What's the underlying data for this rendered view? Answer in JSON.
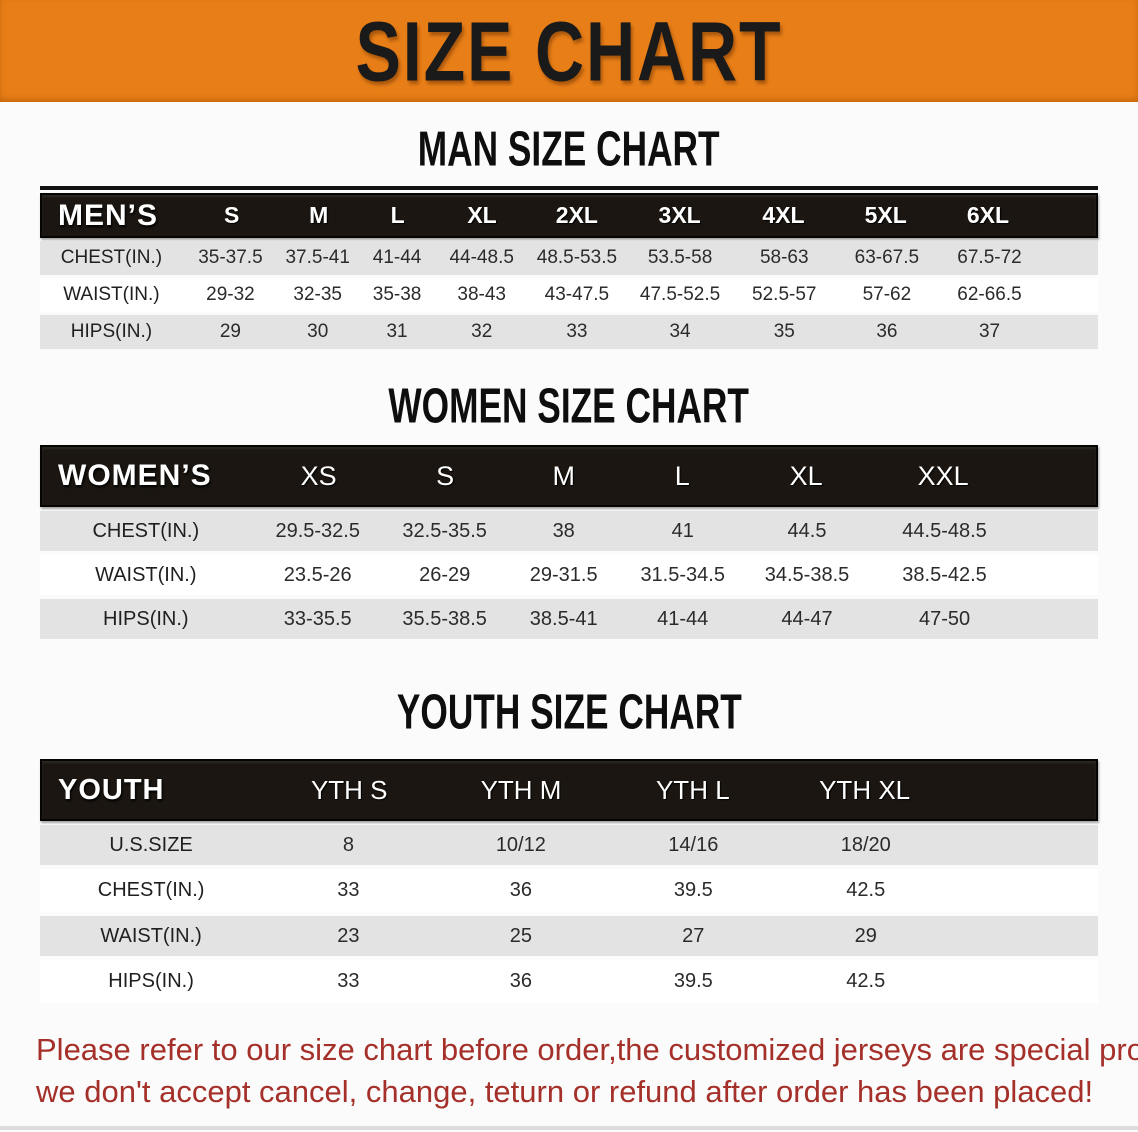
{
  "banner": {
    "title": "SIZE CHART",
    "bg_color": "#E87E17",
    "text_color": "#1A1A1A"
  },
  "sections": {
    "men": {
      "heading": "MAN SIZE CHART",
      "table": {
        "corner_label": "MEN’S",
        "columns": [
          "S",
          "M",
          "L",
          "XL",
          "2XL",
          "3XL",
          "4XL",
          "5XL",
          "6XL"
        ],
        "rows": [
          {
            "label": "CHEST(IN.)",
            "values": [
              "35-37.5",
              "37.5-41",
              "41-44",
              "44-48.5",
              "48.5-53.5",
              "53.5-58",
              "58-63",
              "63-67.5",
              "67.5-72"
            ]
          },
          {
            "label": "WAIST(IN.)",
            "values": [
              "29-32",
              "32-35",
              "35-38",
              "38-43",
              "43-47.5",
              "47.5-52.5",
              "52.5-57",
              "57-62",
              "62-66.5"
            ]
          },
          {
            "label": "HIPS(IN.)",
            "values": [
              "29",
              "30",
              "31",
              "32",
              "33",
              "34",
              "35",
              "36",
              "37"
            ]
          }
        ]
      }
    },
    "women": {
      "heading": "WOMEN SIZE CHART",
      "table": {
        "corner_label": "WOMEN’S",
        "columns": [
          "XS",
          "S",
          "M",
          "L",
          "XL",
          "XXL"
        ],
        "rows": [
          {
            "label": "CHEST(IN.)",
            "values": [
              "29.5-32.5",
              "32.5-35.5",
              "38",
              "41",
              "44.5",
              "44.5-48.5"
            ]
          },
          {
            "label": "WAIST(IN.)",
            "values": [
              "23.5-26",
              "26-29",
              "29-31.5",
              "31.5-34.5",
              "34.5-38.5",
              "38.5-42.5"
            ]
          },
          {
            "label": "HIPS(IN.)",
            "values": [
              "33-35.5",
              "35.5-38.5",
              "38.5-41",
              "41-44",
              "44-47",
              "47-50"
            ]
          }
        ]
      }
    },
    "youth": {
      "heading": "YOUTH SIZE CHART",
      "table": {
        "corner_label": "YOUTH",
        "columns": [
          "YTH S",
          "YTH M",
          "YTH L",
          "YTH XL"
        ],
        "rows": [
          {
            "label": "U.S.SIZE",
            "values": [
              "8",
              "10/12",
              "14/16",
              "18/20"
            ]
          },
          {
            "label": "CHEST(IN.)",
            "values": [
              "33",
              "36",
              "39.5",
              "42.5"
            ]
          },
          {
            "label": "WAIST(IN.)",
            "values": [
              "23",
              "25",
              "27",
              "29"
            ]
          },
          {
            "label": "HIPS(IN.)",
            "values": [
              "33",
              "36",
              "39.5",
              "42.5"
            ]
          }
        ]
      }
    }
  },
  "footer": {
    "line1": "Please refer to our size chart before order,the customized jerseys are special products,",
    "line2": "we don't accept cancel, change, teturn or refund after order has been placed!",
    "text_color": "#A5302A"
  },
  "colors": {
    "banner_orange": "#E87E17",
    "header_bar_black": "#1B1611",
    "row_gray": "#E3E3E3",
    "row_white": "#FFFFFF",
    "note_red": "#A5302A"
  }
}
